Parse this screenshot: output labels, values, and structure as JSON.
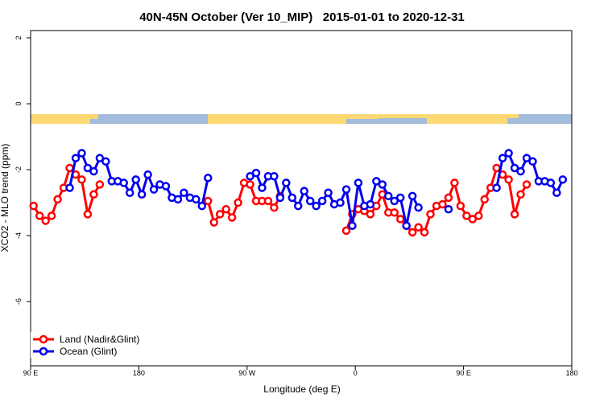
{
  "chart_data": {
    "type": "line",
    "title": "40N-45N October (Ver 10_MIP)   2015-01-01 to 2020-12-31",
    "xlabel": "Longitude (deg E)",
    "ylabel": "XCO2 - MLO trend (ppm)",
    "xlim": [
      90,
      540
    ],
    "ylim": [
      -7.95,
      2.22
    ],
    "xticks": [
      {
        "value": 90,
        "label": "90 E"
      },
      180,
      {
        "value": 270,
        "label": "90 W"
      },
      {
        "value": 360,
        "label": "0"
      },
      {
        "value": 450,
        "label": "90 E"
      },
      {
        "value": 540,
        "label": "180"
      }
    ],
    "yticks": [
      2,
      0,
      -2,
      -4,
      -6
    ],
    "grid": false,
    "legend": "bottom-left",
    "x": [
      92.5,
      97.5,
      102.5,
      107.5,
      112.5,
      117.5,
      122.5,
      127.5,
      132.5,
      137.5,
      142.5,
      147.5,
      152.5,
      157.5,
      162.5,
      167.5,
      172.5,
      177.5,
      182.5,
      187.5,
      192.5,
      197.5,
      202.5,
      207.5,
      212.5,
      217.5,
      222.5,
      227.5,
      232.5,
      237.5,
      242.5,
      247.5,
      252.5,
      257.5,
      262.5,
      267.5,
      272.5,
      277.5,
      282.5,
      287.5,
      292.5,
      297.5,
      302.5,
      307.5,
      312.5,
      317.5,
      322.5,
      327.5,
      332.5,
      337.5,
      342.5,
      347.5,
      352.5,
      357.5,
      362.5,
      367.5,
      372.5,
      377.5,
      382.5,
      387.5,
      392.5,
      397.5,
      402.5,
      407.5,
      412.5,
      417.5,
      422.5,
      427.5,
      432.5,
      437.5,
      442.5,
      447.5,
      452.5,
      457.5,
      462.5,
      467.5,
      472.5,
      477.5,
      482.5,
      487.5,
      492.5,
      497.5,
      502.5,
      507.5,
      512.5,
      517.5,
      522.5,
      527.5,
      532.5,
      537.5
    ],
    "series": [
      {
        "name": "Land (Nadir&Glint)",
        "color": "#ff0000",
        "values": [
          -3.1,
          -3.4,
          -3.55,
          -3.4,
          -2.9,
          -2.55,
          -1.95,
          -2.15,
          -2.3,
          -3.35,
          -2.75,
          -2.45,
          null,
          null,
          null,
          null,
          null,
          null,
          null,
          null,
          null,
          null,
          null,
          null,
          null,
          null,
          null,
          null,
          null,
          -2.95,
          -3.6,
          -3.35,
          -3.2,
          -3.45,
          -3.0,
          -2.4,
          -2.45,
          -2.95,
          -2.95,
          -2.95,
          -3.15,
          -2.8,
          null,
          null,
          null,
          null,
          null,
          null,
          null,
          null,
          null,
          null,
          -3.85,
          -3.35,
          -3.2,
          -3.25,
          -3.35,
          -3.1,
          -2.75,
          -3.3,
          -3.3,
          -3.5,
          -3.7,
          -3.9,
          -3.75,
          -3.9,
          -3.35,
          -3.1,
          -3.05,
          -2.85,
          -2.4,
          -3.1,
          -3.4,
          -3.5,
          -3.4,
          -2.9,
          -2.55,
          -1.95,
          -2.15,
          -2.3,
          -3.35,
          -2.75,
          -2.45,
          null,
          null,
          null,
          null,
          null,
          null,
          null
        ]
      },
      {
        "name": "Ocean (Glint)",
        "color": "#0000ee",
        "values": [
          null,
          null,
          null,
          null,
          null,
          null,
          -2.55,
          -1.65,
          -1.5,
          -1.95,
          -2.05,
          -1.65,
          -1.75,
          -2.35,
          -2.35,
          -2.4,
          -2.7,
          -2.3,
          -2.75,
          -2.15,
          -2.6,
          -2.45,
          -2.5,
          -2.85,
          -2.9,
          -2.7,
          -2.85,
          -2.9,
          -3.1,
          -2.25,
          null,
          null,
          null,
          null,
          null,
          null,
          -2.2,
          -2.1,
          -2.55,
          -2.2,
          -2.2,
          -2.85,
          -2.4,
          -2.85,
          -3.1,
          -2.65,
          -2.95,
          -3.1,
          -2.95,
          -2.7,
          -3.05,
          -3.0,
          -2.6,
          -3.7,
          -2.4,
          -3.1,
          -3.05,
          -2.35,
          -2.45,
          -2.8,
          -2.95,
          -2.85,
          -3.7,
          -2.8,
          -3.15,
          null,
          null,
          null,
          null,
          -3.2,
          null,
          null,
          null,
          null,
          null,
          null,
          null,
          -2.55,
          -1.65,
          -1.5,
          -1.95,
          -2.05,
          -1.65,
          -1.75,
          -2.35,
          -2.35,
          -2.4,
          -2.7,
          -2.3,
          null
        ]
      }
    ]
  }
}
